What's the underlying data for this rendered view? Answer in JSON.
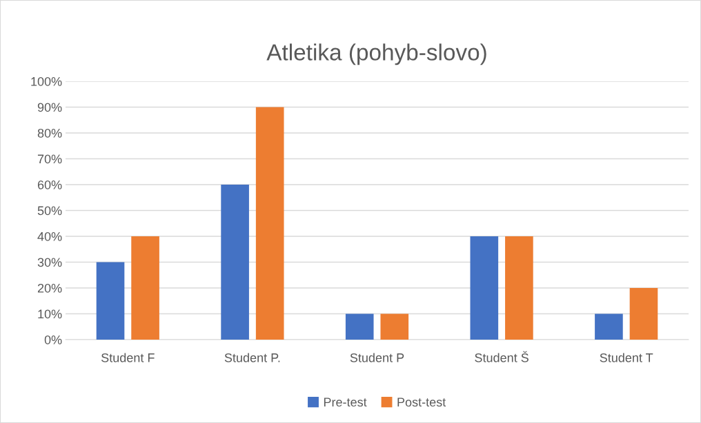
{
  "chart_data": {
    "type": "bar",
    "title": "Atletika (pohyb-slovo)",
    "categories": [
      "Student F",
      "Student P.",
      "Student P",
      "Student Š",
      "Student T"
    ],
    "series": [
      {
        "name": "Pre-test",
        "color": "#4472c4",
        "values": [
          30,
          60,
          10,
          40,
          10
        ]
      },
      {
        "name": "Post-test",
        "color": "#ed7d31",
        "values": [
          40,
          90,
          10,
          40,
          20
        ]
      }
    ],
    "ylim": [
      0,
      100
    ],
    "yticks": [
      {
        "value": 0,
        "label": "0%"
      },
      {
        "value": 10,
        "label": "10%"
      },
      {
        "value": 20,
        "label": "20%"
      },
      {
        "value": 30,
        "label": "30%"
      },
      {
        "value": 40,
        "label": "40%"
      },
      {
        "value": 50,
        "label": "50%"
      },
      {
        "value": 60,
        "label": "60%"
      },
      {
        "value": 70,
        "label": "70%"
      },
      {
        "value": 80,
        "label": "80%"
      },
      {
        "value": 90,
        "label": "90%"
      },
      {
        "value": 100,
        "label": "100%"
      }
    ],
    "grid": "y",
    "legend": "bottom"
  }
}
